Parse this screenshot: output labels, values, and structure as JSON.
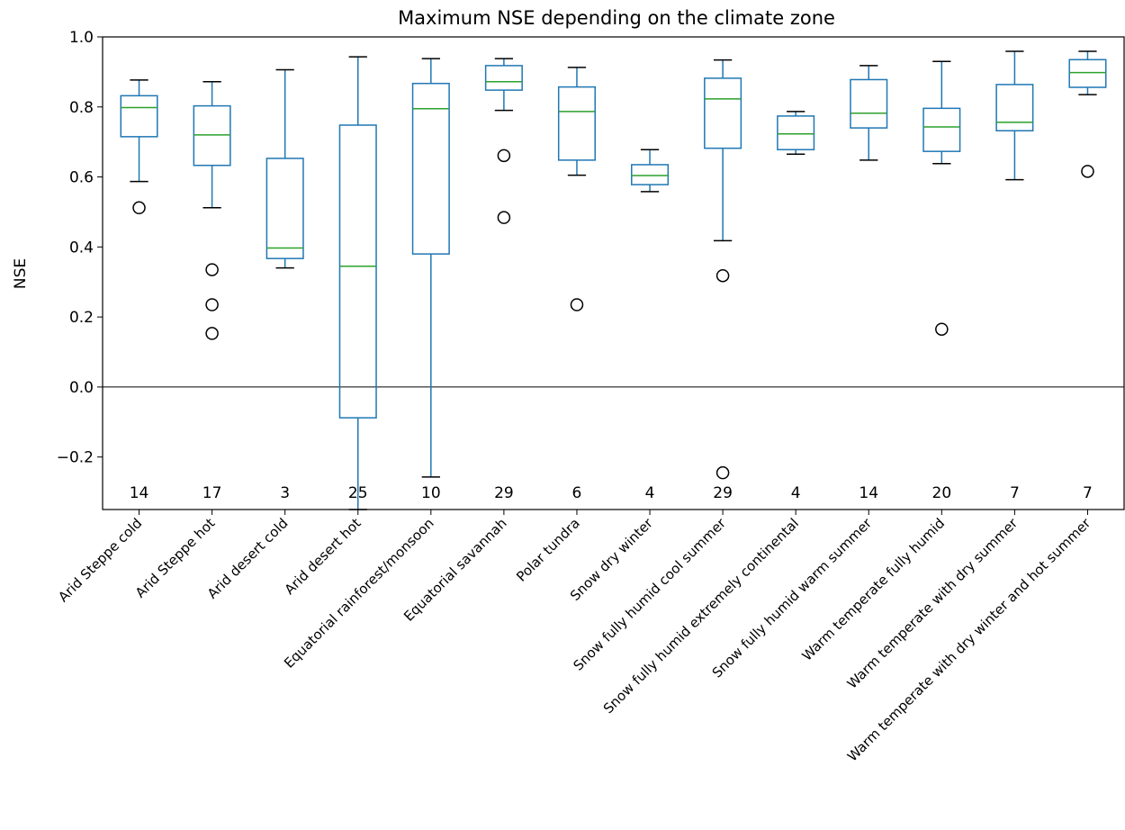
{
  "chart_data": {
    "type": "box",
    "title": "Maximum NSE depending on the climate zone",
    "xlabel": "",
    "ylabel": "NSE",
    "ylim": [
      -0.35,
      1.0
    ],
    "yticks": [
      -0.2,
      0.0,
      0.2,
      0.4,
      0.6,
      0.8,
      1.0
    ],
    "ytick_labels": [
      "−0.2",
      "0.0",
      "0.2",
      "0.4",
      "0.6",
      "0.8",
      "1.0"
    ],
    "reference_line": 0.0,
    "grid": false,
    "colors": {
      "box": "#1f77b4",
      "median": "#2ca02c",
      "reference": "#000000",
      "outlier": "#000000"
    },
    "categories": [
      "Arid Steppe cold",
      "Arid Steppe hot",
      "Arid desert cold",
      "Arid desert hot",
      "Equatorial rainforest/monsoon",
      "Equatorial savannah",
      "Polar tundra",
      "Snow dry winter",
      "Snow fully humid cool summer",
      "Snow fully humid extremely continental",
      "Snow fully humid warm summer",
      "Warm temperate fully humid",
      "Warm temperate with dry summer",
      "Warm temperate with dry winter and hot summer"
    ],
    "counts": [
      "14",
      "17",
      "3",
      "25",
      "10",
      "29",
      "6",
      "4",
      "29",
      "4",
      "14",
      "20",
      "7",
      "7"
    ],
    "boxes": [
      {
        "whislo": 0.587,
        "q1": 0.715,
        "med": 0.798,
        "q3": 0.832,
        "whishi": 0.877,
        "fliers": [
          0.512
        ]
      },
      {
        "whislo": 0.512,
        "q1": 0.633,
        "med": 0.72,
        "q3": 0.803,
        "whishi": 0.872,
        "fliers": [
          0.335,
          0.235,
          0.153
        ]
      },
      {
        "whislo": 0.34,
        "q1": 0.367,
        "med": 0.397,
        "q3": 0.653,
        "whishi": 0.906,
        "fliers": []
      },
      {
        "whislo": -0.35,
        "q1": -0.088,
        "med": 0.345,
        "q3": 0.748,
        "whishi": 0.943,
        "fliers": []
      },
      {
        "whislo": -0.257,
        "q1": 0.38,
        "med": 0.795,
        "q3": 0.867,
        "whishi": 0.938,
        "fliers": []
      },
      {
        "whislo": 0.79,
        "q1": 0.848,
        "med": 0.872,
        "q3": 0.918,
        "whishi": 0.938,
        "fliers": [
          0.661,
          0.484
        ]
      },
      {
        "whislo": 0.605,
        "q1": 0.648,
        "med": 0.787,
        "q3": 0.857,
        "whishi": 0.913,
        "fliers": [
          0.235
        ]
      },
      {
        "whislo": 0.558,
        "q1": 0.578,
        "med": 0.604,
        "q3": 0.635,
        "whishi": 0.678,
        "fliers": []
      },
      {
        "whislo": 0.418,
        "q1": 0.682,
        "med": 0.823,
        "q3": 0.882,
        "whishi": 0.934,
        "fliers": [
          0.318,
          -0.245
        ]
      },
      {
        "whislo": 0.665,
        "q1": 0.678,
        "med": 0.723,
        "q3": 0.774,
        "whishi": 0.787,
        "fliers": []
      },
      {
        "whislo": 0.648,
        "q1": 0.74,
        "med": 0.782,
        "q3": 0.878,
        "whishi": 0.918,
        "fliers": []
      },
      {
        "whislo": 0.638,
        "q1": 0.673,
        "med": 0.743,
        "q3": 0.796,
        "whishi": 0.93,
        "fliers": [
          0.165
        ]
      },
      {
        "whislo": 0.592,
        "q1": 0.732,
        "med": 0.756,
        "q3": 0.864,
        "whishi": 0.959,
        "fliers": []
      },
      {
        "whislo": 0.835,
        "q1": 0.856,
        "med": 0.898,
        "q3": 0.935,
        "whishi": 0.959,
        "fliers": [
          0.616
        ]
      }
    ]
  }
}
